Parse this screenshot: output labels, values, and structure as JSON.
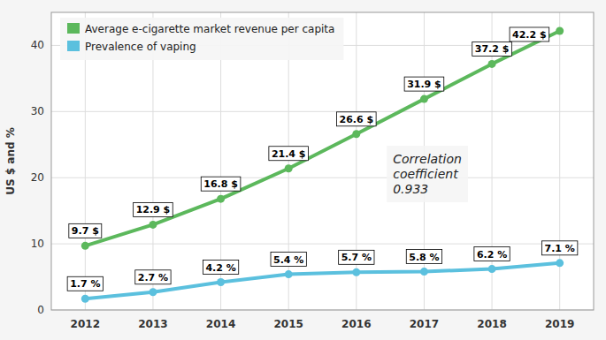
{
  "chart_data": {
    "type": "line",
    "x": [
      2012,
      2013,
      2014,
      2015,
      2016,
      2017,
      2018,
      2019
    ],
    "xlim": [
      2011.5,
      2019.5
    ],
    "xticks": [
      2012,
      2013,
      2014,
      2015,
      2016,
      2017,
      2018,
      2019
    ],
    "ylim": [
      0,
      45
    ],
    "yticks": [
      0,
      10,
      20,
      30,
      40
    ],
    "y_label": "US $ and %",
    "series": [
      {
        "name": "Average e-cigarette market revenue per capita",
        "color": "#5cb85c",
        "marker": "circle",
        "values": [
          9.7,
          12.9,
          16.8,
          21.4,
          26.6,
          31.9,
          37.2,
          42.2
        ],
        "value_labels": [
          "9.7 $",
          "12.9 $",
          "16.8 $",
          "21.4 $",
          "26.6 $",
          "31.9 $",
          "37.2 $",
          "42.2 $"
        ]
      },
      {
        "name": "Prevalence of vaping",
        "color": "#5bc0de",
        "marker": "circle",
        "values": [
          1.7,
          2.7,
          4.2,
          5.4,
          5.7,
          5.8,
          6.2,
          7.1
        ],
        "value_labels": [
          "1.7 %",
          "2.7 %",
          "4.2 %",
          "5.4 %",
          "5.7 %",
          "5.8 %",
          "6.2 %",
          "7.1 %"
        ]
      }
    ],
    "annotations": [
      "Correlation\ncoefficient\n0.933"
    ],
    "grid": true,
    "legend": "upper left",
    "data_labels": true
  }
}
